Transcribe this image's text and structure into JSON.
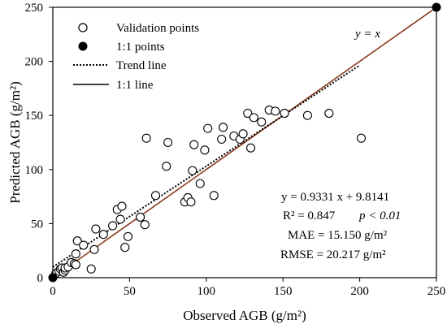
{
  "chart_data": {
    "type": "scatter",
    "xlabel": "Observed AGB (g/m²)",
    "ylabel": "Predicted AGB (g/m²)",
    "xlim": [
      0,
      250
    ],
    "ylim": [
      0,
      250
    ],
    "x_ticks": [
      "0",
      "50",
      "100",
      "150",
      "200",
      "250"
    ],
    "y_ticks": [
      "0",
      "50",
      "100",
      "150",
      "200",
      "250"
    ],
    "grid": false,
    "legend_position": "top-left",
    "legend": [
      {
        "label": "Validation points",
        "marker": "open-circle"
      },
      {
        "label": "1:1 points",
        "marker": "filled-circle"
      },
      {
        "label": "Trend line",
        "marker": "dotted-line"
      },
      {
        "label": "1:1 line",
        "marker": "solid-line"
      }
    ],
    "line_label": "y = x",
    "trend_line": {
      "slope": 0.9331,
      "intercept": 9.8141,
      "x_range": [
        0,
        200
      ],
      "style": "dotted",
      "color": "#000000"
    },
    "identity_line": {
      "x_range": [
        0,
        250
      ],
      "color": "#8B3A1A",
      "overlay_color": "#000000"
    },
    "stats": {
      "equation": "y = 0.9331 x + 9.8141",
      "r2": "R² = 0.847",
      "p": "p < 0.01",
      "mae": "MAE = 15.150 g/m²",
      "rmse": "RMSE = 20.217 g/m²"
    },
    "series": [
      {
        "name": "Validation points",
        "marker": "open-circle",
        "points": [
          [
            2,
            4
          ],
          [
            4,
            6
          ],
          [
            5,
            8
          ],
          [
            6,
            9
          ],
          [
            7,
            5
          ],
          [
            8,
            7
          ],
          [
            8,
            9
          ],
          [
            10,
            10
          ],
          [
            12,
            14
          ],
          [
            14,
            13
          ],
          [
            15,
            12
          ],
          [
            16,
            34
          ],
          [
            15,
            22
          ],
          [
            20,
            30
          ],
          [
            25,
            8
          ],
          [
            27,
            26
          ],
          [
            28,
            45
          ],
          [
            33,
            40
          ],
          [
            39,
            48
          ],
          [
            42,
            63
          ],
          [
            44,
            54
          ],
          [
            45,
            66
          ],
          [
            47,
            28
          ],
          [
            49,
            38
          ],
          [
            57,
            56
          ],
          [
            60,
            49
          ],
          [
            61,
            129
          ],
          [
            67,
            76
          ],
          [
            74,
            103
          ],
          [
            75,
            125
          ],
          [
            86,
            70
          ],
          [
            88,
            74
          ],
          [
            90,
            70
          ],
          [
            91,
            99
          ],
          [
            92,
            123
          ],
          [
            96,
            87
          ],
          [
            99,
            118
          ],
          [
            101,
            138
          ],
          [
            105,
            76
          ],
          [
            110,
            128
          ],
          [
            111,
            139
          ],
          [
            118,
            131
          ],
          [
            122,
            128
          ],
          [
            124,
            133
          ],
          [
            127,
            152
          ],
          [
            129,
            120
          ],
          [
            131,
            148
          ],
          [
            136,
            144
          ],
          [
            141,
            155
          ],
          [
            145,
            154
          ],
          [
            151,
            152
          ],
          [
            166,
            150
          ],
          [
            180,
            152
          ],
          [
            201,
            129
          ]
        ]
      },
      {
        "name": "1:1 points",
        "marker": "filled-circle",
        "points": [
          [
            0,
            0
          ],
          [
            250,
            250
          ]
        ]
      }
    ]
  }
}
